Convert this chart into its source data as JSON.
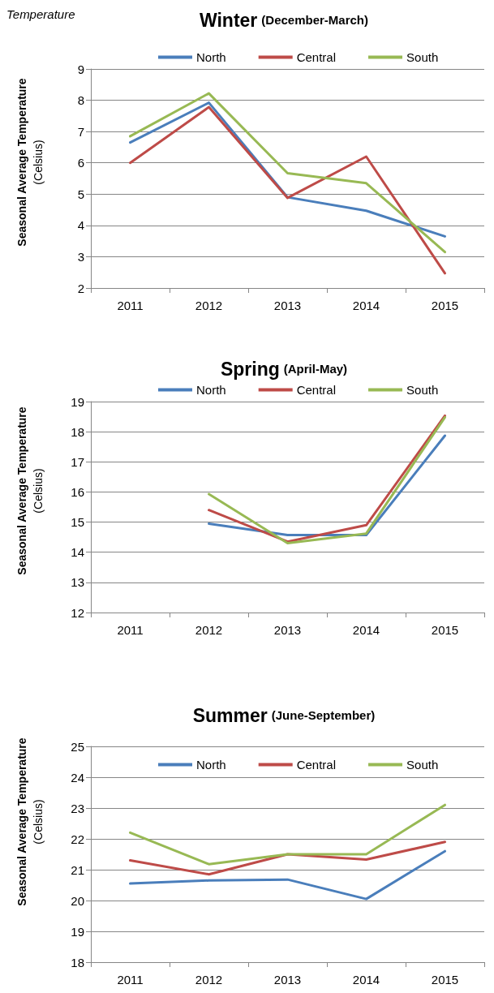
{
  "chart_data": [
    {
      "type": "line",
      "title": "Winter",
      "subtitle": "(December-March)",
      "ylabel": "Seasonal Average Temperature\n(Celsius)",
      "annotations": [
        "Temperature"
      ],
      "categories": [
        "2011",
        "2012",
        "2013",
        "2014",
        "2015"
      ],
      "series": [
        {
          "name": "North",
          "color": "#4a7ebb",
          "values": [
            6.65,
            7.92,
            4.9,
            4.47,
            3.65
          ]
        },
        {
          "name": "Central",
          "color": "#be4b48",
          "values": [
            6.0,
            7.78,
            4.88,
            6.2,
            2.47
          ]
        },
        {
          "name": "South",
          "color": "#98b954",
          "values": [
            6.85,
            8.22,
            5.67,
            5.35,
            3.15
          ]
        }
      ],
      "ylim": [
        2,
        9
      ],
      "yticks": [
        2,
        3,
        4,
        5,
        6,
        7,
        8,
        9
      ],
      "grid": "y",
      "legend": "top",
      "marker": "none",
      "line_style": "solid"
    },
    {
      "type": "line",
      "title": "Spring",
      "subtitle": "(April-May)",
      "ylabel": "Seasonal Average Temperature\n(Celsius)",
      "categories": [
        "2011",
        "2012",
        "2013",
        "2014",
        "2015"
      ],
      "series": [
        {
          "name": "North",
          "color": "#4a7ebb",
          "values": [
            null,
            14.95,
            14.57,
            14.57,
            17.87
          ]
        },
        {
          "name": "Central",
          "color": "#be4b48",
          "values": [
            null,
            15.4,
            14.35,
            14.9,
            18.53
          ]
        },
        {
          "name": "South",
          "color": "#98b954",
          "values": [
            null,
            15.93,
            14.3,
            14.62,
            18.48
          ]
        }
      ],
      "ylim": [
        12,
        19
      ],
      "yticks": [
        12,
        13,
        14,
        15,
        16,
        17,
        18,
        19
      ],
      "grid": "y",
      "legend": "top",
      "marker": "none",
      "line_style": "solid"
    },
    {
      "type": "line",
      "title": "Summer",
      "subtitle": "(June-September)",
      "ylabel": "Seasonal Average Temperature\n(Celsius)",
      "categories": [
        "2011",
        "2012",
        "2013",
        "2014",
        "2015"
      ],
      "series": [
        {
          "name": "North",
          "color": "#4a7ebb",
          "values": [
            20.55,
            20.65,
            20.68,
            20.05,
            21.6
          ]
        },
        {
          "name": "Central",
          "color": "#be4b48",
          "values": [
            21.3,
            20.85,
            21.5,
            21.33,
            21.9
          ]
        },
        {
          "name": "South",
          "color": "#98b954",
          "values": [
            22.2,
            21.18,
            21.5,
            21.5,
            23.1
          ]
        }
      ],
      "ylim": [
        18,
        25
      ],
      "yticks": [
        18,
        19,
        20,
        21,
        22,
        23,
        24,
        25
      ],
      "grid": "y",
      "legend": "top",
      "marker": "none",
      "line_style": "solid"
    }
  ]
}
